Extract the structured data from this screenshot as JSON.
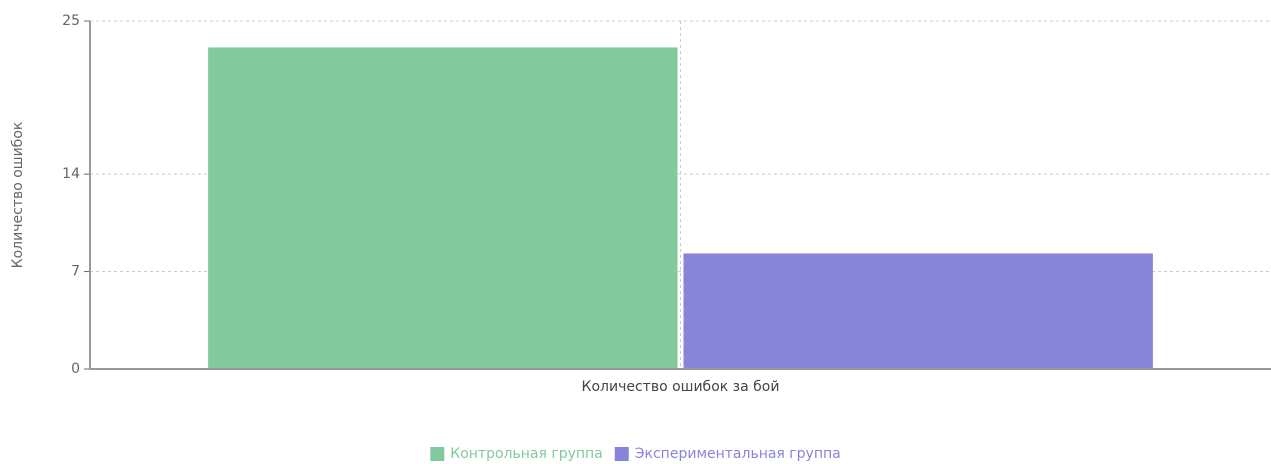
{
  "chart_data": {
    "type": "bar",
    "y_label": "Количество ошибок",
    "categories": [
      "Количество ошибок за бой"
    ],
    "series": [
      {
        "name": "Контрольная группа",
        "color": "#82ca9d",
        "values": [
          23.1
        ]
      },
      {
        "name": "Экспериментальная группа",
        "color": "#8884d8",
        "values": [
          8.3
        ]
      }
    ],
    "ylim": [
      0,
      25
    ],
    "yticks": [
      0,
      7,
      14,
      25
    ],
    "grid": true,
    "legend": "bottom"
  }
}
